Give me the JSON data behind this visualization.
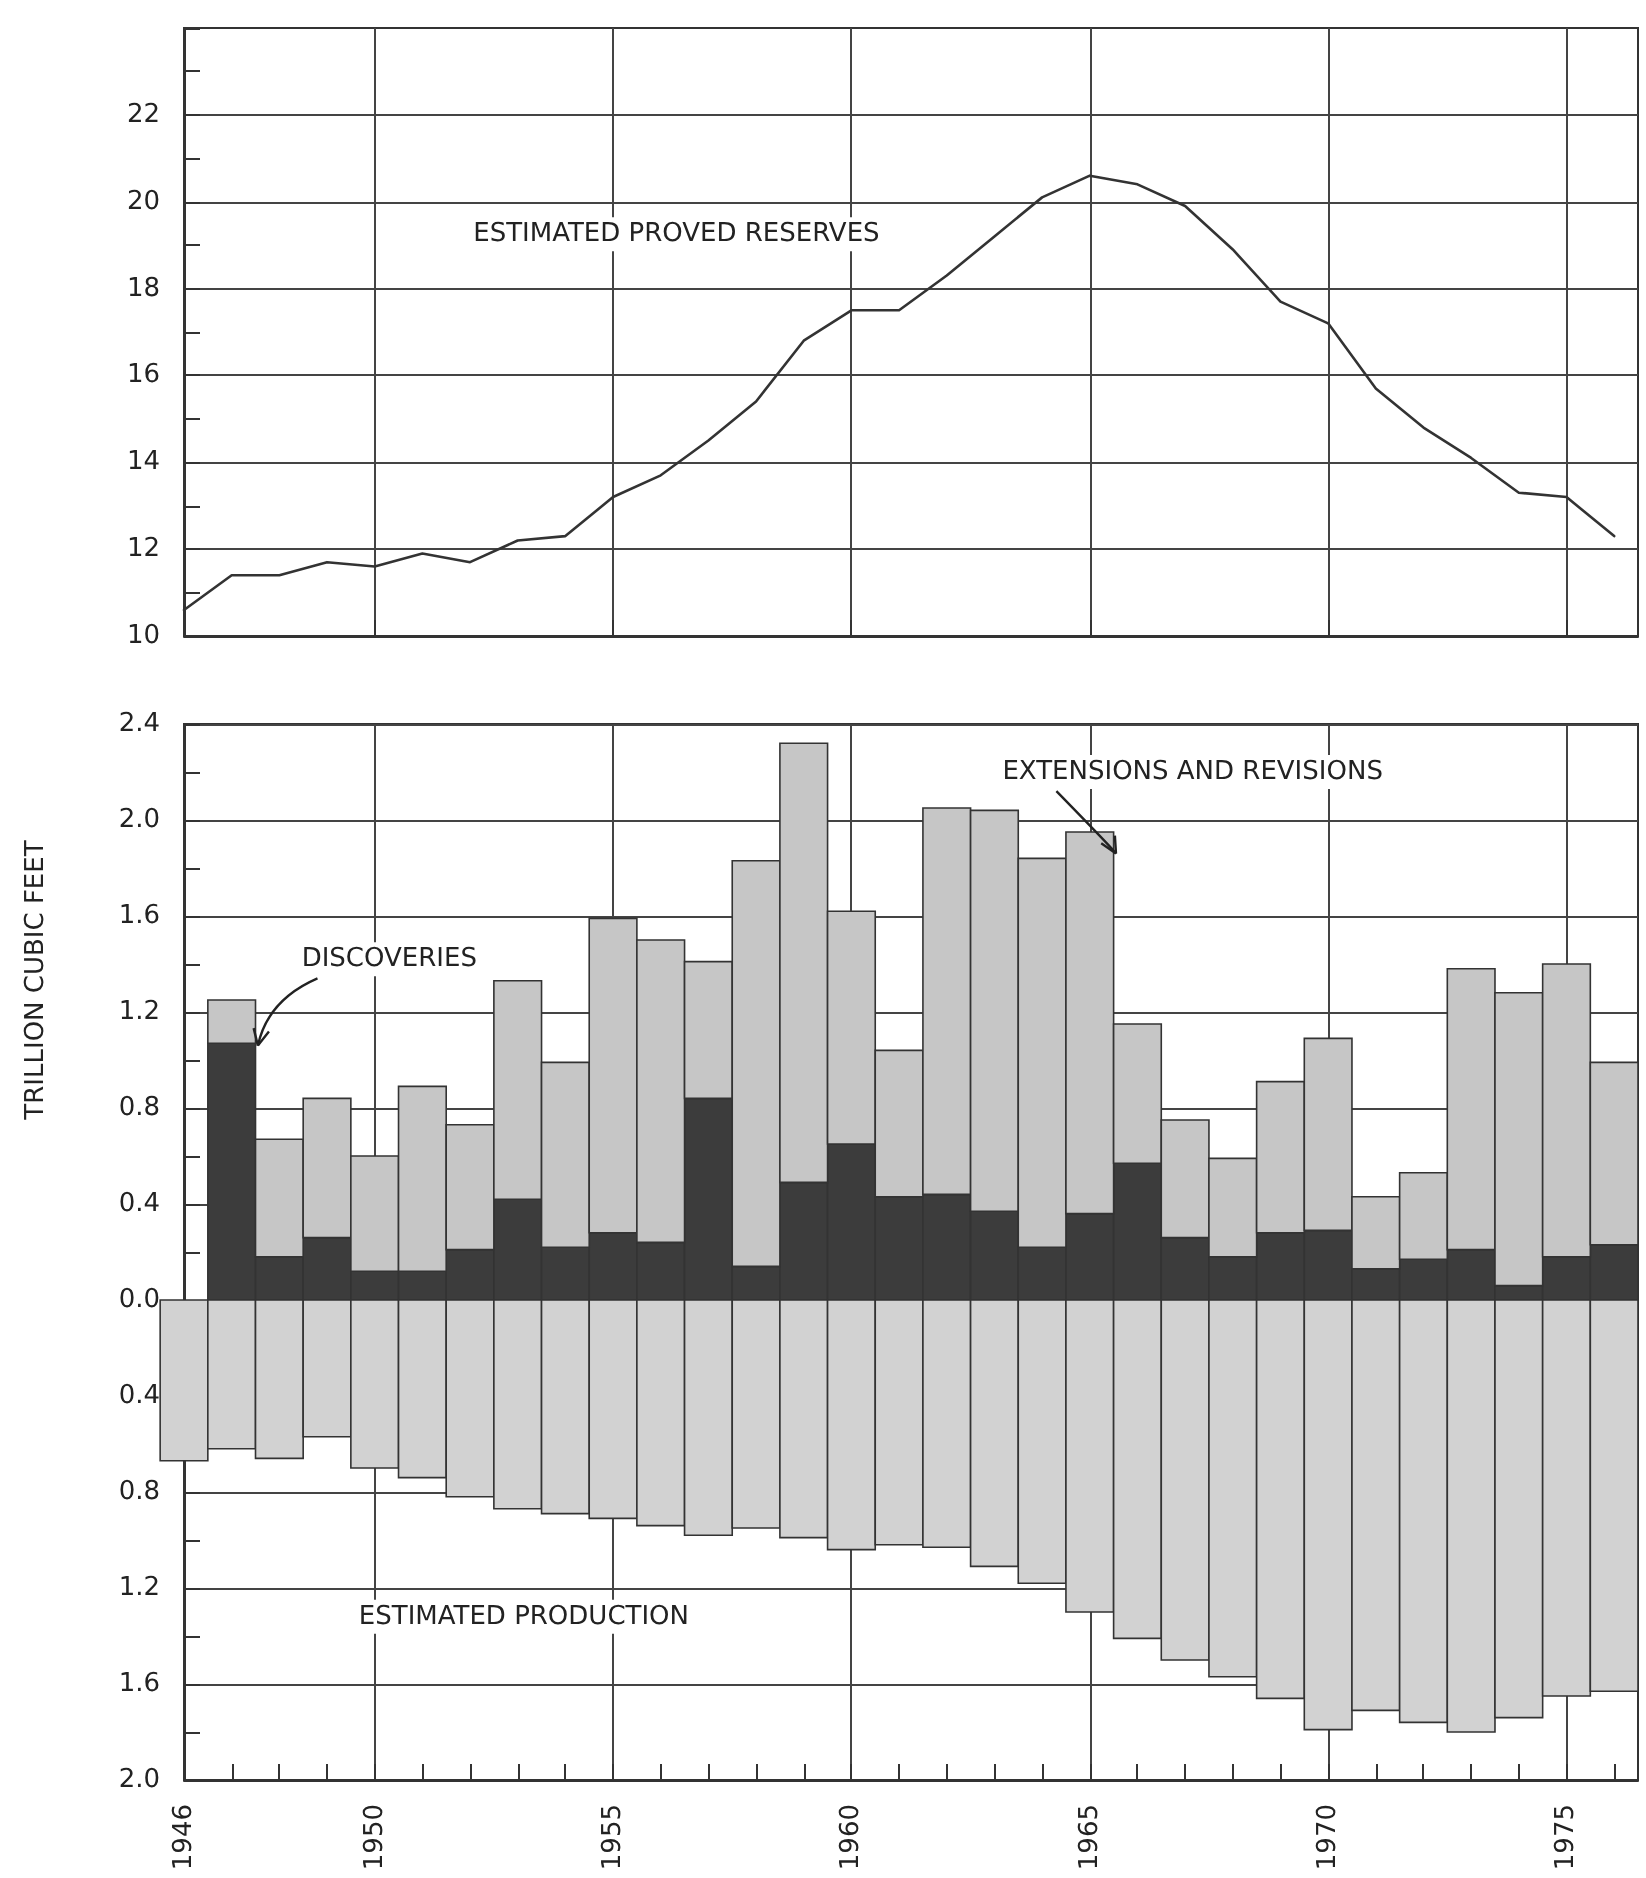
{
  "chart_data": [
    {
      "type": "line",
      "x": [
        1946,
        1947,
        1948,
        1949,
        1950,
        1951,
        1952,
        1953,
        1954,
        1955,
        1956,
        1957,
        1958,
        1959,
        1960,
        1961,
        1962,
        1963,
        1964,
        1965,
        1966,
        1967,
        1968,
        1969,
        1970,
        1971,
        1972,
        1973,
        1974,
        1975,
        1976
      ],
      "series": [
        {
          "name": "ESTIMATED PROVED RESERVES",
          "color": "#333333",
          "values": [
            10.6,
            11.4,
            11.4,
            11.7,
            11.6,
            11.9,
            11.7,
            12.2,
            12.3,
            13.2,
            13.7,
            14.5,
            15.4,
            16.8,
            17.5,
            17.5,
            18.3,
            19.2,
            20.1,
            20.6,
            20.4,
            19.9,
            18.9,
            17.7,
            17.2,
            15.7,
            14.8,
            14.1,
            13.3,
            13.2,
            12.3
          ]
        }
      ],
      "xlim": [
        1946,
        1976.5
      ],
      "xticks": [
        1950,
        1955,
        1960,
        1965,
        1970,
        1975
      ],
      "ylim": [
        10,
        24
      ],
      "yticks": [
        10,
        {
          "value": 11,
          "label": null
        },
        12,
        {
          "value": 13,
          "label": null
        },
        14,
        {
          "value": 15,
          "label": null
        },
        16,
        {
          "value": 17,
          "label": null
        },
        18,
        {
          "value": 19,
          "label": null
        },
        20,
        {
          "value": 21,
          "label": null
        },
        22,
        {
          "value": 23,
          "label": null
        },
        {
          "value": 24,
          "label": null
        }
      ],
      "grid": true,
      "tick_labels": "y",
      "marker": "none",
      "line_style": "solid",
      "legend": false
    },
    {
      "type": "bar",
      "stacked": true,
      "ylabel": "TRILLION CUBIC FEET",
      "x": [
        1946,
        1947,
        1948,
        1949,
        1950,
        1951,
        1952,
        1953,
        1954,
        1955,
        1956,
        1957,
        1958,
        1959,
        1960,
        1961,
        1962,
        1963,
        1964,
        1965,
        1966,
        1967,
        1968,
        1969,
        1970,
        1971,
        1972,
        1973,
        1974,
        1975,
        1976
      ],
      "series": [
        {
          "name": "DISCOVERIES",
          "color": "#3c3c3c",
          "values": [
            null,
            1.07,
            0.18,
            0.26,
            0.12,
            0.12,
            0.21,
            0.42,
            0.22,
            0.28,
            0.24,
            0.84,
            0.14,
            0.49,
            0.65,
            0.43,
            0.44,
            0.37,
            0.22,
            0.36,
            0.57,
            0.26,
            0.18,
            0.28,
            0.29,
            0.13,
            0.17,
            0.21,
            0.06,
            0.18,
            0.23
          ]
        },
        {
          "name": "EXTENSIONS AND REVISIONS",
          "color": "#c6c6c6",
          "values": [
            null,
            0.18,
            0.49,
            0.58,
            0.48,
            0.77,
            0.52,
            0.91,
            0.77,
            1.31,
            1.26,
            0.57,
            1.69,
            1.83,
            0.97,
            0.61,
            1.61,
            1.67,
            1.62,
            1.59,
            0.58,
            0.49,
            0.41,
            0.63,
            0.8,
            0.3,
            0.36,
            1.17,
            1.22,
            1.22,
            0.76
          ]
        },
        {
          "name": "ESTIMATED PRODUCTION",
          "color": "#d2d2d2",
          "values": [
            -0.67,
            -0.62,
            -0.66,
            -0.57,
            -0.7,
            -0.74,
            -0.82,
            -0.87,
            -0.89,
            -0.91,
            -0.94,
            -0.98,
            -0.95,
            -0.99,
            -1.04,
            -1.02,
            -1.03,
            -1.11,
            -1.18,
            -1.3,
            -1.41,
            -1.5,
            -1.57,
            -1.66,
            -1.79,
            -1.71,
            -1.76,
            -1.8,
            -1.74,
            -1.65,
            -1.63
          ]
        }
      ],
      "xlim": [
        1946,
        1976.5
      ],
      "xticks": [
        1946,
        {
          "value": 1947,
          "label": null
        },
        {
          "value": 1948,
          "label": null
        },
        {
          "value": 1949,
          "label": null
        },
        1950,
        {
          "value": 1951,
          "label": null
        },
        {
          "value": 1952,
          "label": null
        },
        {
          "value": 1953,
          "label": null
        },
        {
          "value": 1954,
          "label": null
        },
        1955,
        {
          "value": 1956,
          "label": null
        },
        {
          "value": 1957,
          "label": null
        },
        {
          "value": 1958,
          "label": null
        },
        {
          "value": 1959,
          "label": null
        },
        1960,
        {
          "value": 1961,
          "label": null
        },
        {
          "value": 1962,
          "label": null
        },
        {
          "value": 1963,
          "label": null
        },
        {
          "value": 1964,
          "label": null
        },
        1965,
        {
          "value": 1966,
          "label": null
        },
        {
          "value": 1967,
          "label": null
        },
        {
          "value": 1968,
          "label": null
        },
        {
          "value": 1969,
          "label": null
        },
        1970,
        {
          "value": 1971,
          "label": null
        },
        {
          "value": 1972,
          "label": null
        },
        {
          "value": 1973,
          "label": null
        },
        {
          "value": 1974,
          "label": null
        },
        1975,
        {
          "value": 1976,
          "label": null
        }
      ],
      "ylim": [
        -2,
        2.4
      ],
      "yticks": [
        {
          "value": -2,
          "label": "2.0"
        },
        {
          "value": -1.8,
          "label": null
        },
        {
          "value": -1.6,
          "label": "1.6"
        },
        {
          "value": -1.4,
          "label": null
        },
        {
          "value": -1.2,
          "label": "1.2"
        },
        {
          "value": -1,
          "label": null
        },
        {
          "value": -0.8,
          "label": "0.8"
        },
        {
          "value": -0.6,
          "label": null
        },
        {
          "value": -0.4,
          "label": "0.4"
        },
        {
          "value": -0.2,
          "label": null
        },
        {
          "value": 0,
          "label": "0.0"
        },
        {
          "value": 0.2,
          "label": null
        },
        {
          "value": 0.4,
          "label": "0.4"
        },
        {
          "value": 0.6,
          "label": null
        },
        {
          "value": 0.8,
          "label": "0.8"
        },
        {
          "value": 1,
          "label": null
        },
        {
          "value": 1.2,
          "label": "1.2"
        },
        {
          "value": 1.4,
          "label": null
        },
        {
          "value": 1.6,
          "label": "1.6"
        },
        {
          "value": 1.8,
          "label": null
        },
        {
          "value": 2,
          "label": "2.0"
        },
        {
          "value": 2.2,
          "label": null
        },
        {
          "value": 2.4,
          "label": "2.4"
        }
      ],
      "grid": true,
      "legend": false
    }
  ]
}
